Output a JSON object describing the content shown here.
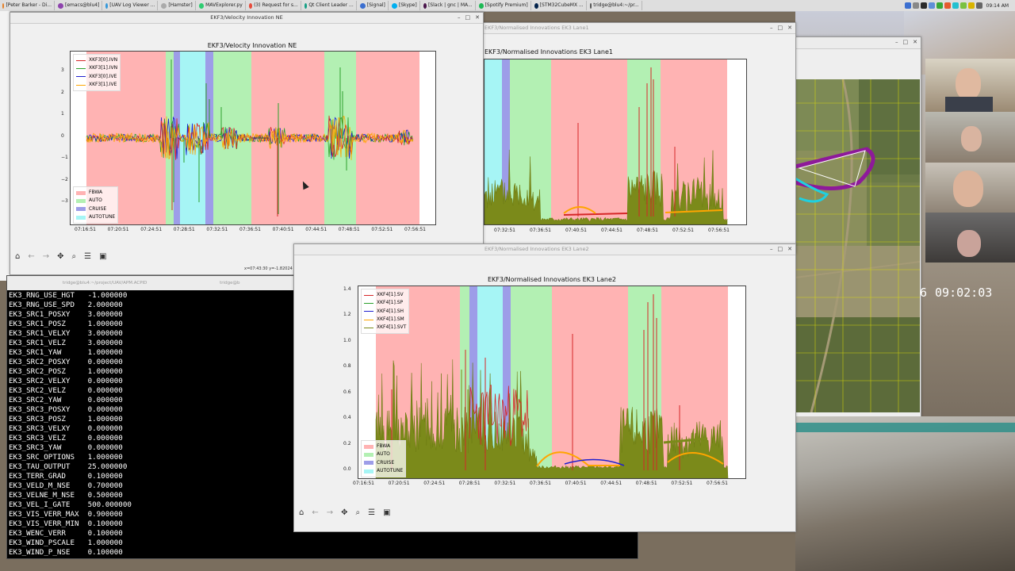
{
  "taskbar": {
    "tasks": [
      "[Peter Barker - Di...",
      "[emacs@blu4]",
      "[UAV Log Viewer ...",
      "[Hamster]",
      "MAVExplorer.py",
      "(3) Request for s...",
      "Qt Client Leader ...",
      "[Signal]",
      "[Skype]",
      "[Slack | gnc | MA...",
      "[Spotify Premium]",
      "[STM32CubeMX ...",
      "tridge@blu4:~/pr..."
    ],
    "clock": "09:14 AM"
  },
  "win_ne": {
    "title": "EKF3/Velocity Innovation NE",
    "status": "x=07:43:30 y=-1.82024"
  },
  "win_lane1": {
    "title": "EKF3/Normalised Innovations EK3 Lane1"
  },
  "win_lane2": {
    "title": "EKF3/Normalised Innovations EK3 Lane2"
  },
  "terminal": {
    "title_left": "tridge@blu4:~/project/UAV/APM.ACPID",
    "title_right": "tridge@b",
    "lines": [
      "EK3_RNG_USE_HGT   -1.000000",
      "EK3_RNG_USE_SPD   2.000000",
      "EK3_SRC1_POSXY    3.000000",
      "EK3_SRC1_POSZ     1.000000",
      "EK3_SRC1_VELXY    3.000000",
      "EK3_SRC1_VELZ     3.000000",
      "EK3_SRC1_YAW      1.000000",
      "EK3_SRC2_POSXY    0.000000",
      "EK3_SRC2_POSZ     1.000000",
      "EK3_SRC2_VELXY    0.000000",
      "EK3_SRC2_VELZ     0.000000",
      "EK3_SRC2_YAW      0.000000",
      "EK3_SRC3_POSXY    0.000000",
      "EK3_SRC3_POSZ     1.000000",
      "EK3_SRC3_VELXY    0.000000",
      "EK3_SRC3_VELZ     0.000000",
      "EK3_SRC3_YAW      0.000000",
      "EK3_SRC_OPTIONS   1.000000",
      "EK3_TAU_OUTPUT    25.000000",
      "EK3_TERR_GRAD     0.100000",
      "EK3_VELD_M_NSE    0.700000",
      "EK3_VELNE_M_NSE   0.500000",
      "EK3_VEL_I_GATE    500.000000",
      "EK3_VIS_VERR_MAX  0.900000",
      "EK3_VIS_VERR_MIN  0.100000",
      "EK3_WENC_VERR     0.100000",
      "EK3_WIND_PSCALE   1.000000",
      "EK3_WIND_P_NSE    0.100000"
    ]
  },
  "video": {
    "timestamp_prefix": "6",
    "timestamp": "09:02:03"
  },
  "colors": {
    "FBWA": "#ffb3b3",
    "AUTO": "#b3f0b3",
    "CRUISE": "#9d9de8",
    "AUTOTUNE": "#a6f5f5"
  },
  "chart_data": [
    {
      "type": "line",
      "title": "EKF3/Velocity Innovation NE",
      "x_ticks": [
        "07:16:51",
        "07:20:51",
        "07:24:51",
        "07:28:51",
        "07:32:51",
        "07:36:51",
        "07:40:51",
        "07:44:51",
        "07:48:51",
        "07:52:51",
        "07:56:51"
      ],
      "y_ticks": [
        "3",
        "2",
        "1",
        "0",
        "−1",
        "−2",
        "−3"
      ],
      "ylim": [
        -3.9,
        3.9
      ],
      "series": [
        {
          "name": "XKF3[0].IVN",
          "color": "#d62728"
        },
        {
          "name": "XKF3[1].IVN",
          "color": "#2ca02c"
        },
        {
          "name": "XKF3[0].IVE",
          "color": "#1f1fcf"
        },
        {
          "name": "XKF3[1].IVE",
          "color": "#ffa500"
        }
      ],
      "modes": [
        "FBWA",
        "AUTO",
        "CRUISE",
        "AUTOTUNE"
      ]
    },
    {
      "type": "line",
      "title": "EKF3/Normalised Innovations EK3 Lane1",
      "x_ticks": [
        "07:32:51",
        "07:36:51",
        "07:40:51",
        "07:44:51",
        "07:48:51",
        "07:52:51",
        "07:56:51"
      ]
    },
    {
      "type": "line",
      "title": "EKF3/Normalised Innovations EK3 Lane2",
      "x_ticks": [
        "07:16:51",
        "07:20:51",
        "07:24:51",
        "07:28:51",
        "07:32:51",
        "07:36:51",
        "07:40:51",
        "07:44:51",
        "07:48:51",
        "07:52:51",
        "07:56:51"
      ],
      "y_ticks": [
        "1.4",
        "1.2",
        "1.0",
        "0.8",
        "0.6",
        "0.4",
        "0.2",
        "0.0"
      ],
      "ylim": [
        0,
        1.4
      ],
      "series": [
        {
          "name": "XKF4[1].SV",
          "color": "#d62728"
        },
        {
          "name": "XKF4[1].SP",
          "color": "#2ca02c"
        },
        {
          "name": "XKF4[1].SH",
          "color": "#1f1fcf"
        },
        {
          "name": "XKF4[1].SM",
          "color": "#ffa500"
        },
        {
          "name": "XKF4[1].SVT",
          "color": "#7b8a1a"
        }
      ],
      "modes": [
        "FBWA",
        "AUTO",
        "CRUISE",
        "AUTOTUNE"
      ]
    }
  ]
}
